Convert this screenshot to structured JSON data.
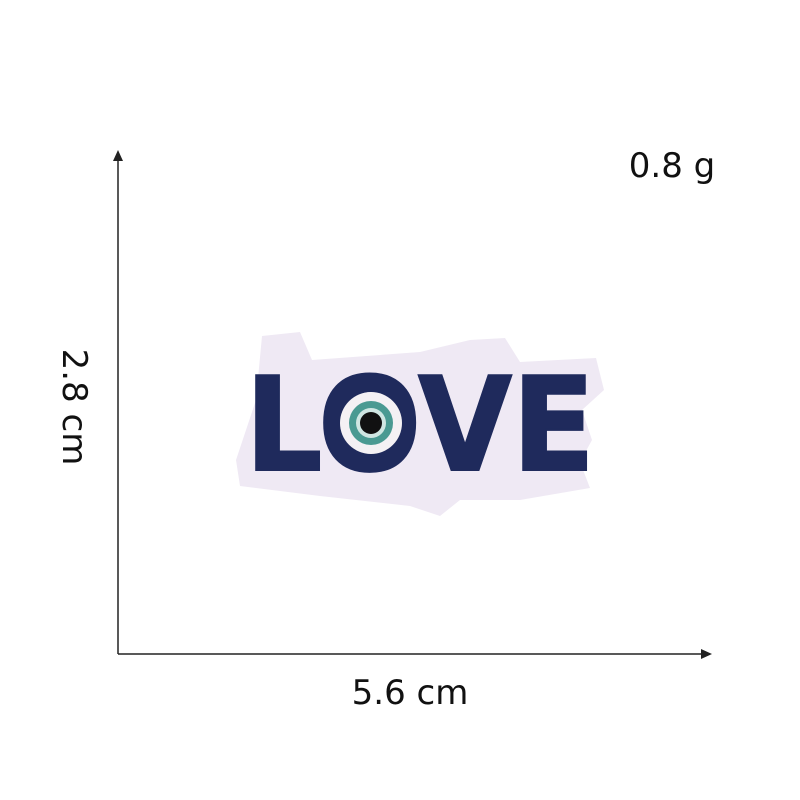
{
  "weight": "0.8 g",
  "height": "2.8 cm",
  "width": "5.6 cm",
  "patch_text": "LOVE"
}
